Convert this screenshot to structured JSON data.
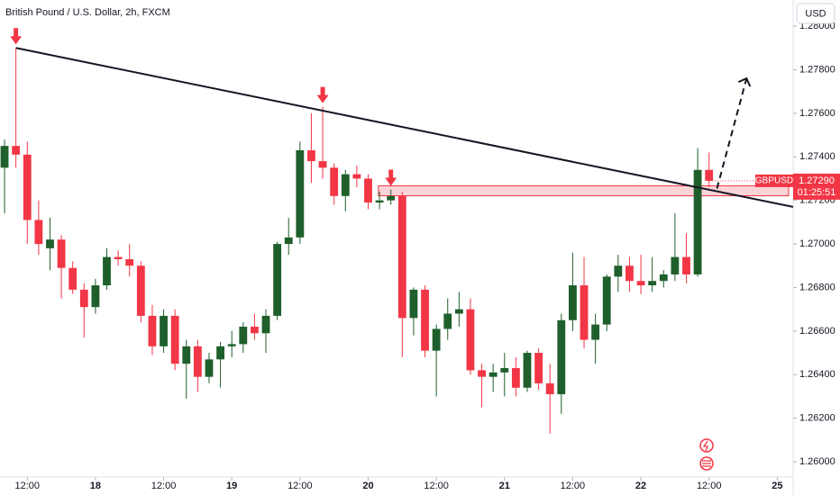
{
  "chart_data": {
    "type": "candlestick",
    "title": "British Pound / U.S. Dollar, 2h, FXCM",
    "currency_button": "USD",
    "up_color": "#1f5f2c",
    "down_color": "#f23645",
    "open": [
      1.2735,
      1.2745,
      1.2741,
      1.2711,
      1.2698,
      1.2702,
      1.2689,
      1.2679,
      1.2671,
      1.2681,
      1.2694,
      1.2693,
      1.269,
      1.2667,
      1.2653,
      1.2667,
      1.2645,
      1.2653,
      1.2639,
      1.2647,
      1.2653,
      1.2654,
      1.2662,
      1.2659,
      1.2667,
      1.27,
      1.2703,
      1.2743,
      1.2738,
      1.2735,
      1.2722,
      1.2732,
      1.273,
      1.2719,
      1.272,
      1.2722,
      1.2666,
      1.2679,
      1.2651,
      1.2661,
      1.2668,
      1.267,
      1.2642,
      1.2639,
      1.2641,
      1.2643,
      1.2634,
      1.265,
      1.2636,
      1.2631,
      1.2665,
      1.2681,
      1.2656,
      1.2663,
      1.2685,
      1.269,
      1.2683,
      1.2681,
      1.2683,
      1.2686,
      1.2694,
      1.2686,
      1.2734
    ],
    "high": [
      1.2748,
      1.279,
      1.2747,
      1.272,
      1.2712,
      1.2704,
      1.2692,
      1.2682,
      1.2684,
      1.2698,
      1.2697,
      1.27,
      1.2692,
      1.2672,
      1.267,
      1.267,
      1.2656,
      1.2656,
      1.265,
      1.2655,
      1.266,
      1.2664,
      1.2668,
      1.267,
      1.2701,
      1.2712,
      1.2747,
      1.276,
      1.2763,
      1.2737,
      1.2734,
      1.2736,
      1.2732,
      1.2724,
      1.2725,
      1.2724,
      1.268,
      1.2681,
      1.2663,
      1.2675,
      1.2678,
      1.2675,
      1.2645,
      1.2645,
      1.265,
      1.2648,
      1.2651,
      1.2652,
      1.2645,
      1.2668,
      1.2696,
      1.2694,
      1.2668,
      1.2686,
      1.2695,
      1.2694,
      1.2695,
      1.2694,
      1.2688,
      1.2714,
      1.2705,
      1.2744,
      1.2742
    ],
    "low": [
      1.2714,
      1.2735,
      1.27,
      1.2695,
      1.2688,
      1.2675,
      1.2677,
      1.2657,
      1.2668,
      1.2679,
      1.269,
      1.2685,
      1.2664,
      1.2649,
      1.265,
      1.2642,
      1.2629,
      1.2632,
      1.2636,
      1.2634,
      1.2648,
      1.265,
      1.2656,
      1.265,
      1.2665,
      1.2695,
      1.27,
      1.2728,
      1.273,
      1.2718,
      1.2715,
      1.2726,
      1.2716,
      1.2716,
      1.2718,
      1.2648,
      1.2658,
      1.2648,
      1.263,
      1.2656,
      1.2662,
      1.264,
      1.2625,
      1.2632,
      1.263,
      1.263,
      1.2632,
      1.2633,
      1.2613,
      1.2622,
      1.266,
      1.2652,
      1.2645,
      1.266,
      1.2678,
      1.2678,
      1.2677,
      1.2678,
      1.268,
      1.2683,
      1.2682,
      1.2685,
      1.2726
    ],
    "close": [
      1.2745,
      1.2741,
      1.2711,
      1.27,
      1.2702,
      1.2689,
      1.2679,
      1.2671,
      1.2681,
      1.2694,
      1.2693,
      1.269,
      1.2667,
      1.2653,
      1.2667,
      1.2645,
      1.2653,
      1.2639,
      1.2647,
      1.2653,
      1.2654,
      1.2662,
      1.2659,
      1.2667,
      1.27,
      1.2703,
      1.2743,
      1.2738,
      1.2735,
      1.2722,
      1.2732,
      1.273,
      1.2719,
      1.272,
      1.2722,
      1.2666,
      1.2679,
      1.2651,
      1.2661,
      1.2668,
      1.267,
      1.2642,
      1.2639,
      1.2641,
      1.2643,
      1.2634,
      1.265,
      1.2636,
      1.2631,
      1.2665,
      1.2681,
      1.2656,
      1.2663,
      1.2685,
      1.269,
      1.2683,
      1.2681,
      1.2683,
      1.2686,
      1.2694,
      1.2686,
      1.2734,
      1.2729
    ],
    "xlim": [
      -0.4,
      69.4
    ],
    "xticks": [
      {
        "value": 2,
        "label": "12:00"
      },
      {
        "value": 8,
        "label": "18"
      },
      {
        "value": 14,
        "label": "12:00"
      },
      {
        "value": 20,
        "label": "19"
      },
      {
        "value": 26,
        "label": "12:00"
      },
      {
        "value": 32,
        "label": "20"
      },
      {
        "value": 38,
        "label": "12:00"
      },
      {
        "value": 44,
        "label": "21"
      },
      {
        "value": 50,
        "label": "12:00"
      },
      {
        "value": 56,
        "label": "22"
      },
      {
        "value": 62,
        "label": "12:00"
      },
      {
        "value": 68,
        "label": "25"
      }
    ],
    "ylim": [
      1.2593,
      1.2812
    ],
    "yticks": [
      {
        "value": 1.26,
        "label": "1.26000"
      },
      {
        "value": 1.262,
        "label": "1.26200"
      },
      {
        "value": 1.264,
        "label": "1.26400"
      },
      {
        "value": 1.266,
        "label": "1.26600"
      },
      {
        "value": 1.268,
        "label": "1.26800"
      },
      {
        "value": 1.27,
        "label": "1.27000"
      },
      {
        "value": 1.272,
        "label": "1.27200"
      },
      {
        "value": 1.274,
        "label": "1.27400"
      },
      {
        "value": 1.276,
        "label": "1.27600"
      },
      {
        "value": 1.278,
        "label": "1.27800"
      },
      {
        "value": 1.28,
        "label": "1.28000"
      }
    ],
    "grid": false,
    "trendline": {
      "x": [
        1,
        69.4
      ],
      "y": [
        1.279,
        1.2717
      ]
    },
    "projection": {
      "x": [
        62.7,
        65.3
      ],
      "y": [
        1.27255,
        1.2776
      ]
    },
    "zone": {
      "x": [
        32.9,
        69
      ],
      "y": [
        1.27221,
        1.27267
      ]
    },
    "signal_arrows": [
      1,
      28,
      34
    ],
    "price_tag": {
      "symbol": "GBPUSD",
      "value": 1.2729,
      "label": "1.27290",
      "countdown": "01:25:51"
    }
  }
}
